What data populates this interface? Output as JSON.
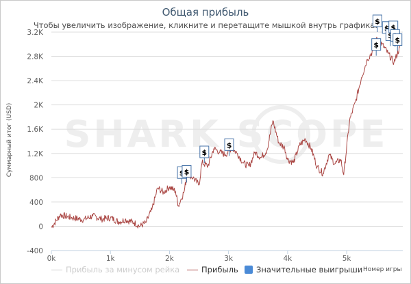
{
  "chart_data": {
    "type": "line",
    "title": "Общая прибыль",
    "subtitle": "Чтобы увеличить изображение, кликните и перетащите мышкой внутрь графика.",
    "ylabel": "Суммарный итог (USD)",
    "xlabel": "Номер игры",
    "xlim": [
      0,
      5950
    ],
    "ylim": [
      -400,
      3200
    ],
    "x_ticks": [
      0,
      1000,
      2000,
      3000,
      4000,
      5000
    ],
    "x_tick_labels": [
      "0k",
      "1k",
      "2k",
      "3k",
      "4k",
      "5k"
    ],
    "y_ticks": [
      -400,
      0,
      400,
      800,
      1200,
      1600,
      2000,
      2400,
      2800,
      3200
    ],
    "y_tick_labels": [
      "-400",
      "0",
      "400",
      "800",
      "1.2K",
      "1.6K",
      "2K",
      "2.4K",
      "2.8K",
      "3.2K"
    ],
    "grid": "horizontal",
    "watermark": "SHARK SCOPE",
    "series": [
      {
        "name": "Прибыль",
        "color": "#aa4643",
        "x": [
          0,
          150,
          350,
          550,
          700,
          850,
          1000,
          1150,
          1250,
          1400,
          1500,
          1600,
          1700,
          1800,
          1900,
          2000,
          2100,
          2150,
          2250,
          2300,
          2400,
          2500,
          2550,
          2650,
          2750,
          2850,
          2950,
          3050,
          3150,
          3250,
          3350,
          3450,
          3550,
          3650,
          3750,
          3850,
          3950,
          4000,
          4100,
          4200,
          4300,
          4400,
          4500,
          4600,
          4700,
          4800,
          4900,
          4950,
          5050,
          5150,
          5250,
          5350,
          5450,
          5500,
          5600,
          5700,
          5800,
          5900
        ],
        "y": [
          -20,
          190,
          140,
          110,
          170,
          120,
          140,
          70,
          110,
          60,
          0,
          60,
          270,
          630,
          560,
          650,
          580,
          340,
          580,
          870,
          800,
          680,
          1050,
          990,
          1280,
          1220,
          1180,
          1290,
          1200,
          1040,
          990,
          1220,
          1130,
          1250,
          1740,
          1380,
          1290,
          1100,
          1050,
          1330,
          1440,
          1280,
          980,
          870,
          1180,
          1030,
          1100,
          850,
          1750,
          2050,
          2450,
          2750,
          2900,
          3080,
          3000,
          2850,
          2700,
          2950
        ]
      }
    ],
    "inactive_series": {
      "name": "Прибыль за минусом рейка",
      "color": "#cccccc"
    },
    "flags_series": {
      "name": "Значительные выигрыши",
      "color": "#4572a7",
      "symbol": "$",
      "points": [
        {
          "x": 2210,
          "y": 880
        },
        {
          "x": 2290,
          "y": 900
        },
        {
          "x": 2590,
          "y": 1220
        },
        {
          "x": 3010,
          "y": 1340
        },
        {
          "x": 5500,
          "y": 2990
        },
        {
          "x": 5520,
          "y": 3380
        },
        {
          "x": 5680,
          "y": 3270
        },
        {
          "x": 5740,
          "y": 3150
        },
        {
          "x": 5790,
          "y": 3280
        },
        {
          "x": 5820,
          "y": 3140
        },
        {
          "x": 5860,
          "y": 3070
        }
      ]
    }
  }
}
